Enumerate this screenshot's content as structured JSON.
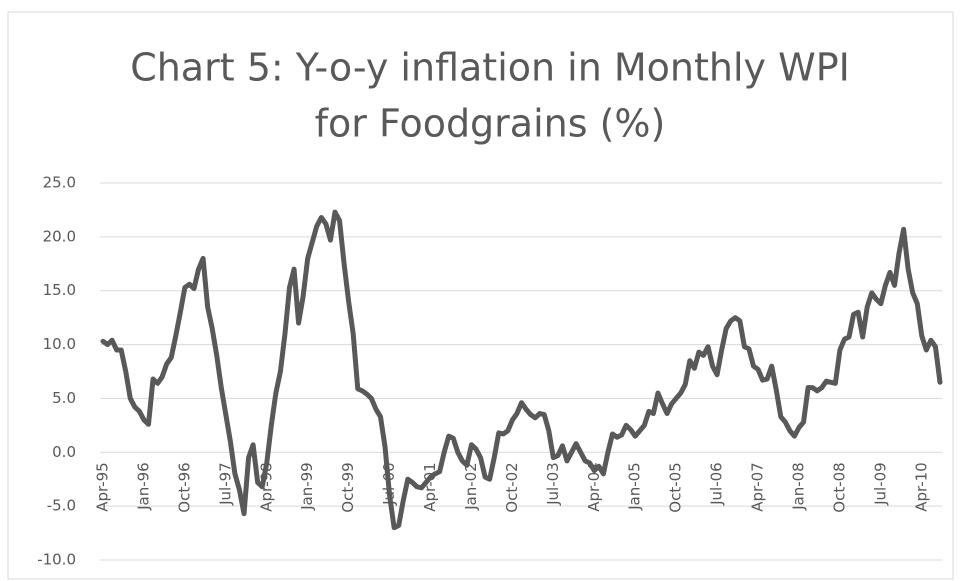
{
  "chart_data": {
    "type": "line",
    "title": [
      "Chart 5: Y-o-y inflation in Monthly WPI",
      "for Foodgrains (%)"
    ],
    "categories": [
      "Apr-95",
      null,
      null,
      null,
      null,
      null,
      null,
      null,
      null,
      "Jan-96",
      null,
      null,
      null,
      null,
      null,
      null,
      null,
      null,
      "Oct-96",
      null,
      null,
      null,
      null,
      null,
      null,
      null,
      null,
      "Jul-97",
      null,
      null,
      null,
      null,
      null,
      null,
      null,
      null,
      "Apr-98",
      null,
      null,
      null,
      null,
      null,
      null,
      null,
      null,
      "Jan-99",
      null,
      null,
      null,
      null,
      null,
      null,
      null,
      null,
      "Oct-99",
      null,
      null,
      null,
      null,
      null,
      null,
      null,
      null,
      "Jul-00",
      null,
      null,
      null,
      null,
      null,
      null,
      null,
      null,
      "Apr-01",
      null,
      null,
      null,
      null,
      null,
      null,
      null,
      null,
      "Jan-02",
      null,
      null,
      null,
      null,
      null,
      null,
      null,
      null,
      "Oct-02",
      null,
      null,
      null,
      null,
      null,
      null,
      null,
      null,
      "Jul-03",
      null,
      null,
      null,
      null,
      null,
      null,
      null,
      null,
      "Apr-04",
      null,
      null,
      null,
      null,
      null,
      null,
      null,
      null,
      "Jan-05",
      null,
      null,
      null,
      null,
      null,
      null,
      null,
      null,
      "Oct-05",
      null,
      null,
      null,
      null,
      null,
      null,
      null,
      null,
      "Jul-06",
      null,
      null,
      null,
      null,
      null,
      null,
      null,
      null,
      "Apr-07",
      null,
      null,
      null,
      null,
      null,
      null,
      null,
      null,
      "Jan-08",
      null,
      null,
      null,
      null,
      null,
      null,
      null,
      null,
      "Oct-08",
      null,
      null,
      null,
      null,
      null,
      null,
      null,
      null,
      "Jul-09",
      null,
      null,
      null,
      null,
      null,
      null,
      null,
      null,
      "Apr-10",
      null,
      null,
      null,
      null
    ],
    "series": [
      {
        "color": "#595959",
        "values": [
          10.3,
          10.0,
          10.4,
          9.5,
          9.5,
          7.5,
          5.0,
          4.2,
          3.8,
          3.0,
          2.6,
          6.8,
          6.4,
          7.0,
          8.2,
          8.8,
          10.8,
          13.0,
          15.3,
          15.6,
          15.2,
          17.0,
          18.0,
          13.5,
          11.5,
          9.0,
          6.0,
          3.5,
          1.0,
          -2.0,
          -3.5,
          -5.7,
          -0.5,
          0.7,
          -2.8,
          -3.2,
          -1.0,
          2.5,
          5.5,
          7.5,
          11.0,
          15.3,
          17.0,
          12.0,
          14.5,
          18.0,
          19.5,
          21.0,
          21.8,
          21.2,
          19.7,
          22.3,
          21.5,
          17.5,
          14.0,
          11.0,
          5.9,
          5.7,
          5.4,
          5.0,
          4.0,
          3.3,
          0.5,
          -4.0,
          -7.0,
          -6.8,
          -4.5,
          -2.5,
          -2.8,
          -3.2,
          -3.3,
          -2.8,
          -2.3,
          -2.0,
          -1.8,
          0.0,
          1.5,
          1.3,
          0.0,
          -0.8,
          -1.2,
          0.7,
          0.3,
          -0.5,
          -2.3,
          -2.5,
          -0.5,
          1.8,
          1.7,
          2.0,
          3.0,
          3.6,
          4.6,
          4.0,
          3.5,
          3.2,
          3.6,
          3.5,
          2.0,
          -0.5,
          -0.3,
          0.6,
          -0.8,
          0.0,
          0.8,
          0.0,
          -0.8,
          -1.0,
          -1.7,
          -1.3,
          -2.0,
          0.0,
          1.7,
          1.4,
          1.6,
          2.5,
          2.1,
          1.5,
          2.0,
          2.5,
          3.8,
          3.6,
          5.5,
          4.5,
          3.6,
          4.5,
          5.0,
          5.5,
          6.3,
          8.5,
          7.8,
          9.3,
          9.0,
          9.8,
          8.0,
          7.2,
          9.5,
          11.5,
          12.2,
          12.5,
          12.2,
          9.8,
          9.6,
          8.0,
          7.7,
          6.7,
          6.8,
          8.0,
          5.8,
          3.3,
          2.8,
          2.0,
          1.5,
          2.3,
          2.8,
          6.0,
          6.0,
          5.7,
          6.0,
          6.6,
          6.5,
          6.4,
          9.5,
          10.5,
          10.7,
          12.8,
          13.0,
          10.7,
          13.5,
          14.8,
          14.2,
          13.8,
          15.5,
          16.7,
          15.5,
          18.5,
          20.7,
          17.0,
          14.8,
          13.8,
          10.8,
          9.5,
          10.4,
          9.8,
          6.5
        ]
      }
    ],
    "ylim": [
      -10,
      25
    ],
    "yticks": [
      {
        "value": -10,
        "label": "-10.0"
      },
      {
        "value": -5,
        "label": "-5.0"
      },
      {
        "value": 0,
        "label": "0.0"
      },
      {
        "value": 5,
        "label": "5.0"
      },
      {
        "value": 10,
        "label": "10.0"
      },
      {
        "value": 15,
        "label": "15.0"
      },
      {
        "value": 20,
        "label": "20.0"
      },
      {
        "value": 25,
        "label": "25.0"
      }
    ],
    "grid": true
  }
}
